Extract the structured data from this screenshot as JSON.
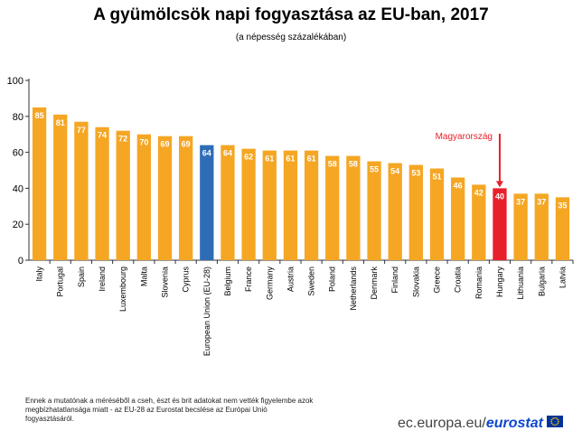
{
  "colors": {
    "bar": "#f5a623",
    "highlight": "#e8202a",
    "eu": "#2e6db5",
    "axis": "#333333",
    "grid": "#cccccc",
    "label_text": "#ffffff",
    "annotation": "#e8202a"
  },
  "chart_data": {
    "type": "bar",
    "title": "A gyümölcsök napi fogyasztása az EU-ban, 2017",
    "subtitle": "(a népesség százalékában)",
    "categories": [
      "Italy",
      "Portugal",
      "Spain",
      "Ireland",
      "Luxembourg",
      "Malta",
      "Slovenia",
      "Cyprus",
      "European Union (EU-28)",
      "Belgium",
      "France",
      "Germany",
      "Austria",
      "Sweden",
      "Poland",
      "Netherlands",
      "Denmark",
      "Finland",
      "Slovakia",
      "Greece",
      "Croatia",
      "Romania",
      "Hungary",
      "Lithuania",
      "Bulgaria",
      "Latvia"
    ],
    "values": [
      85,
      81,
      77,
      74,
      72,
      70,
      69,
      69,
      64,
      64,
      62,
      61,
      61,
      61,
      58,
      58,
      55,
      54,
      53,
      51,
      46,
      42,
      40,
      37,
      37,
      35
    ],
    "data_labels": [
      "85",
      "81",
      "77",
      "74",
      "72",
      "70",
      "69",
      "69",
      "64",
      "64",
      "62",
      "61",
      "61",
      "61",
      "58",
      "58",
      "55",
      "54",
      "53",
      "51",
      "46",
      "42",
      "40",
      "37",
      "37",
      "35"
    ],
    "highlight_category": "Hungary",
    "eu_category": "European Union (EU-28)",
    "annotation": "Magyarország",
    "ylim": [
      0,
      100
    ],
    "yticks": [
      0,
      20,
      40,
      60,
      80,
      100
    ],
    "ytick_labels": [
      "0",
      "20",
      "40",
      "60",
      "80",
      "100"
    ],
    "grid": false,
    "legend": false
  },
  "footer": {
    "note": "Ennek a mutatónak a méréséből a cseh, észt és brit adatokat nem vették figyelembe azok megbízhatatlansága miatt - az EU-28 az Eurostat becslése az Európai Unió fogyasztásáról.",
    "site": "ec.europa.eu/",
    "brand": "eurostat",
    "logo_icon": "eu-flag-icon"
  }
}
